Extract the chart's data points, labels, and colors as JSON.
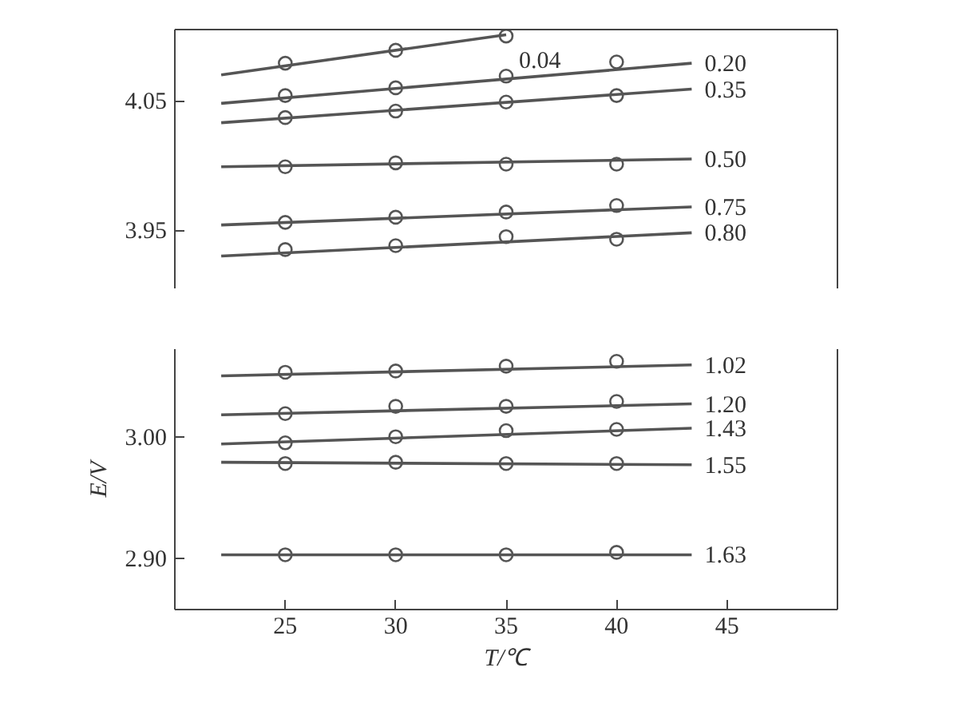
{
  "chart_data": [
    {
      "type": "scatter",
      "xlim": [
        20,
        50
      ],
      "ylim": [
        3.905,
        4.105
      ],
      "yticks": [
        {
          "value": 3.95,
          "label": "3.95"
        },
        {
          "value": 4.05,
          "label": "4.05"
        }
      ],
      "tick_labels": "y",
      "series": [
        {
          "marker": "circle",
          "color": "#555555",
          "x": [
            25,
            30,
            35
          ],
          "values": [
            4.079,
            4.089,
            4.1
          ]
        },
        {
          "type": "line",
          "name": "0.04",
          "color": "#555555",
          "x": [
            22.1,
            35
          ],
          "values": [
            4.07,
            4.101
          ]
        },
        {
          "marker": "circle",
          "color": "#555555",
          "x": [
            25,
            30,
            35,
            40
          ],
          "values": [
            4.054,
            4.06,
            4.069,
            4.08
          ]
        },
        {
          "type": "line",
          "name": "0.20",
          "color": "#555555",
          "x": [
            22.1,
            43.4
          ],
          "values": [
            4.048,
            4.079
          ]
        },
        {
          "marker": "circle",
          "color": "#555555",
          "x": [
            25,
            30,
            35,
            40
          ],
          "values": [
            4.037,
            4.042,
            4.049,
            4.054
          ]
        },
        {
          "type": "line",
          "name": "0.35",
          "color": "#555555",
          "x": [
            22.1,
            43.4
          ],
          "values": [
            4.033,
            4.059
          ]
        },
        {
          "marker": "circle",
          "color": "#555555",
          "x": [
            25,
            30,
            35,
            40
          ],
          "values": [
            3.999,
            4.002,
            4.001,
            4.001
          ]
        },
        {
          "type": "line",
          "name": "0.50",
          "color": "#555555",
          "x": [
            22.1,
            43.4
          ],
          "values": [
            3.999,
            4.005
          ]
        },
        {
          "marker": "circle",
          "color": "#555555",
          "x": [
            25,
            30,
            35,
            40
          ],
          "values": [
            3.956,
            3.96,
            3.964,
            3.969
          ]
        },
        {
          "type": "line",
          "name": "0.75",
          "color": "#555555",
          "x": [
            22.1,
            43.4
          ],
          "values": [
            3.954,
            3.968
          ]
        },
        {
          "marker": "circle",
          "color": "#555555",
          "x": [
            25,
            30,
            35,
            40
          ],
          "values": [
            3.935,
            3.938,
            3.945,
            3.943
          ]
        },
        {
          "type": "line",
          "name": "0.80",
          "color": "#555555",
          "x": [
            22.1,
            43.4
          ],
          "values": [
            3.93,
            3.948
          ]
        }
      ]
    },
    {
      "type": "scatter",
      "xlim": [
        20,
        50
      ],
      "ylim": [
        2.858,
        3.072
      ],
      "xticks": [
        25,
        30,
        35,
        40,
        45
      ],
      "yticks": [
        {
          "value": 2.9,
          "label": "2.90"
        },
        {
          "value": 3.0,
          "label": "3.00"
        }
      ],
      "xlabel": "T/℃",
      "ylabel": "E/V",
      "series": [
        {
          "marker": "circle",
          "color": "#555555",
          "x": [
            25,
            30,
            35,
            40
          ],
          "values": [
            3.053,
            3.054,
            3.058,
            3.062
          ]
        },
        {
          "type": "line",
          "name": "1.02",
          "color": "#555555",
          "x": [
            22.1,
            43.4
          ],
          "values": [
            3.05,
            3.059
          ]
        },
        {
          "marker": "circle",
          "color": "#555555",
          "x": [
            25,
            30,
            35,
            40
          ],
          "values": [
            3.019,
            3.025,
            3.025,
            3.029
          ]
        },
        {
          "type": "line",
          "name": "1.20",
          "color": "#555555",
          "x": [
            22.1,
            43.4
          ],
          "values": [
            3.018,
            3.027
          ]
        },
        {
          "marker": "circle",
          "color": "#555555",
          "x": [
            25,
            30,
            35,
            40
          ],
          "values": [
            2.995,
            3.0,
            3.005,
            3.006
          ]
        },
        {
          "type": "line",
          "name": "1.43",
          "color": "#555555",
          "x": [
            22.1,
            43.4
          ],
          "values": [
            2.994,
            3.007
          ]
        },
        {
          "marker": "circle",
          "color": "#555555",
          "x": [
            25,
            30,
            35,
            40
          ],
          "values": [
            2.978,
            2.979,
            2.978,
            2.978
          ]
        },
        {
          "type": "line",
          "name": "1.55",
          "color": "#555555",
          "x": [
            22.1,
            43.4
          ],
          "values": [
            2.979,
            2.977
          ]
        },
        {
          "marker": "circle",
          "color": "#555555",
          "x": [
            25,
            30,
            35,
            40
          ],
          "values": [
            2.903,
            2.903,
            2.903,
            2.905
          ]
        },
        {
          "type": "line",
          "name": "1.63",
          "color": "#555555",
          "x": [
            22.1,
            43.4
          ],
          "values": [
            2.903,
            2.903
          ]
        }
      ]
    }
  ]
}
